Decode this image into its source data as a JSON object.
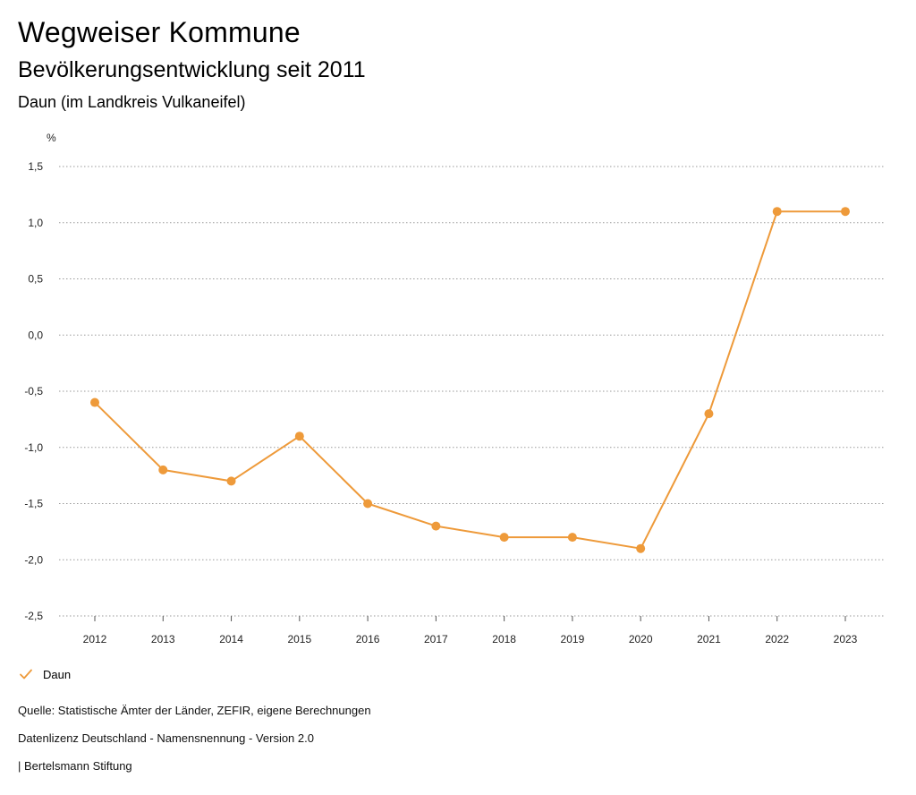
{
  "header": {
    "title": "Wegweiser Kommune",
    "subtitle": "Bevölkerungsentwicklung seit 2011",
    "region": "Daun (im Landkreis Vulkaneifel)"
  },
  "chart_data": {
    "type": "line",
    "title": "Bevölkerungsentwicklung seit 2011",
    "ylabel": "%",
    "xlabel": "",
    "ylim": [
      -2.5,
      1.5
    ],
    "yticks": [
      "1,5",
      "1,0",
      "0,5",
      "0,0",
      "-0,5",
      "-1,0",
      "-1,5",
      "-2,0",
      "-2,5"
    ],
    "ytick_values": [
      1.5,
      1.0,
      0.5,
      0.0,
      -0.5,
      -1.0,
      -1.5,
      -2.0,
      -2.5
    ],
    "categories": [
      "2012",
      "2013",
      "2014",
      "2015",
      "2016",
      "2017",
      "2018",
      "2019",
      "2020",
      "2021",
      "2022",
      "2023"
    ],
    "series": [
      {
        "name": "Daun",
        "color": "#ee9a3a",
        "values": [
          -0.6,
          -1.2,
          -1.3,
          -0.9,
          -1.5,
          -1.7,
          -1.8,
          -1.8,
          -1.9,
          -0.7,
          1.1,
          1.1
        ]
      }
    ],
    "grid": true,
    "legend": "bottom-left"
  },
  "legend": {
    "label": "Daun"
  },
  "footer": {
    "source": "Quelle: Statistische Ämter der Länder, ZEFIR, eigene Berechnungen",
    "license": "Datenlizenz Deutschland - Namensnennung - Version 2.0",
    "credit": "| Bertelsmann Stiftung"
  }
}
